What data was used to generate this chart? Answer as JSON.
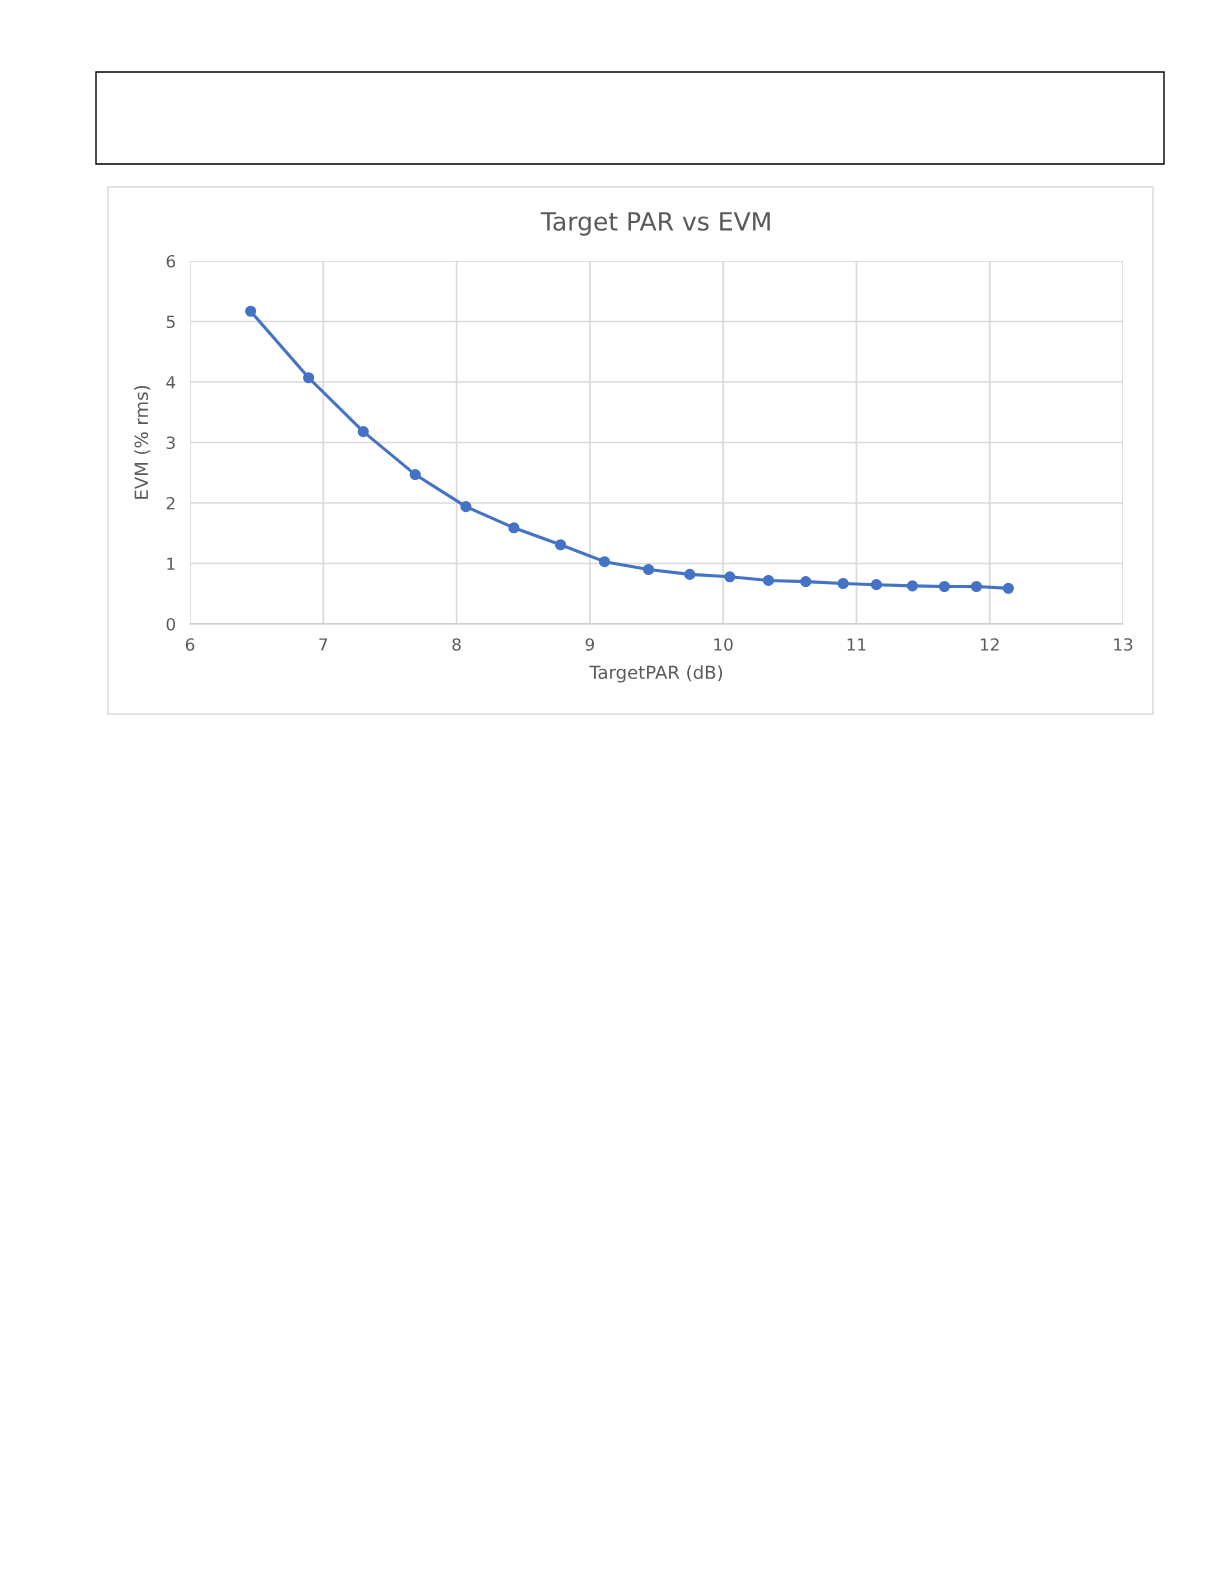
{
  "chart_data": {
    "type": "line",
    "title": "Target PAR vs EVM",
    "xlabel": "TargetPAR (dB)",
    "ylabel": "EVM (% rms)",
    "x": [
      6.455,
      6.89,
      7.3,
      7.69,
      8.07,
      8.43,
      8.78,
      9.11,
      9.44,
      9.75,
      10.05,
      10.34,
      10.62,
      10.9,
      11.15,
      11.42,
      11.66,
      11.9,
      12.14
    ],
    "series": [
      {
        "color": "#4472c4",
        "values": [
          5.17,
          4.07,
          3.18,
          2.47,
          1.94,
          1.59,
          1.31,
          1.03,
          0.9,
          0.82,
          0.78,
          0.72,
          0.7,
          0.67,
          0.65,
          0.63,
          0.62,
          0.62,
          0.59
        ]
      }
    ],
    "xlim": [
      6,
      13
    ],
    "xticks": [
      6,
      7,
      8,
      9,
      10,
      11,
      12,
      13
    ],
    "ylim": [
      0,
      6
    ],
    "yticks": [
      0,
      1,
      2,
      3,
      4,
      5,
      6
    ],
    "grid": true,
    "marker": "circle",
    "line_style": "solid"
  }
}
